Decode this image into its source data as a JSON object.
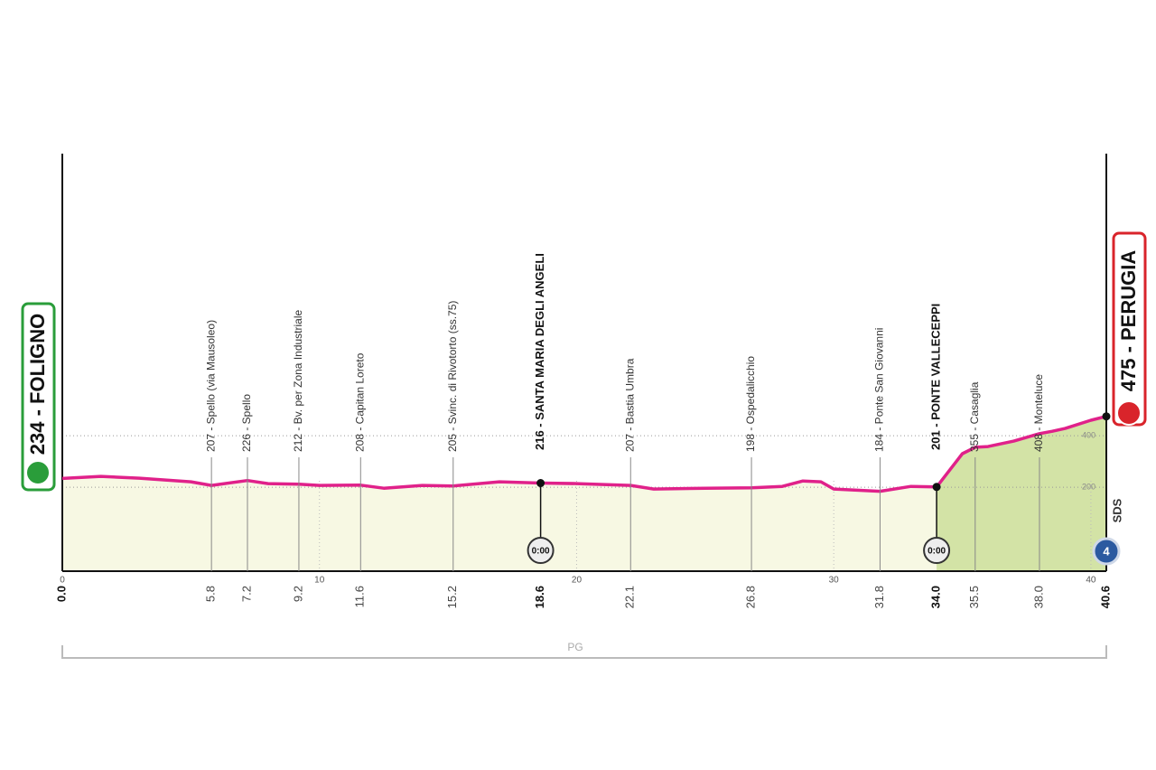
{
  "chart_data": {
    "type": "elevation",
    "profile": {
      "km": [
        0,
        1.5,
        3,
        5,
        5.8,
        7.2,
        8,
        9.2,
        10,
        11.6,
        12.5,
        14,
        15.2,
        17,
        18.6,
        20,
        22.1,
        23,
        25,
        26.8,
        28,
        28.8,
        29.5,
        30,
        31.8,
        33,
        34,
        35,
        35.5,
        36,
        37,
        38,
        38.5,
        39,
        40,
        40.6
      ],
      "elevation": [
        234,
        242,
        235,
        221,
        207,
        226,
        214,
        212,
        207,
        208,
        196,
        207,
        205,
        221,
        216,
        214,
        207,
        193,
        196,
        198,
        203,
        224,
        221,
        193,
        184,
        203,
        201,
        330,
        355,
        358,
        379,
        408,
        417,
        428,
        460,
        475
      ]
    },
    "waypoints": [
      {
        "km": {
          "value": 0,
          "label": "0.0"
        },
        "label": "234 - FOLIGNO"
      },
      {
        "km": 5.8,
        "label": "207 - Spello (via Mausoleo)"
      },
      {
        "km": 7.2,
        "label": "226 - Spello"
      },
      {
        "km": 9.2,
        "label": "212 - Bv. per Zona Industriale"
      },
      {
        "km": 11.6,
        "label": "208 - Capitan Loreto"
      },
      {
        "km": 15.2,
        "label": "205 - Svinc. di Rivotorto (ss.75)"
      },
      {
        "km": 18.6,
        "label": "216 - SANTA MARIA DEGLI ANGELI",
        "time": "0:00"
      },
      {
        "km": 22.1,
        "label": "207 - Bastia Umbra"
      },
      {
        "km": 26.8,
        "label": "198 - Ospedalicchio"
      },
      {
        "km": 31.8,
        "label": "184 - Ponte San Giovanni"
      },
      {
        "km": {
          "value": 34,
          "label": "34.0"
        },
        "label": "201 - PONTE VALLECEPPI",
        "time": "0:00"
      },
      {
        "km": 35.5,
        "label": "355 - Casaglia"
      },
      {
        "km": {
          "value": 38,
          "label": "38.0"
        },
        "label": "408 - Monteluce"
      },
      {
        "km": 40.6,
        "label": "475 - PERUGIA"
      }
    ],
    "xlim": [
      0,
      40.6
    ],
    "xticks": [
      0,
      10,
      20,
      30,
      40
    ],
    "ylim": [
      -126,
      1495
    ],
    "yticks": [
      200,
      400
    ],
    "grid": true,
    "region": "PG",
    "brand": "SDS",
    "stage_badge": "4",
    "line_color": "#e0218a",
    "fill_color": "#f7f8e3",
    "climb_color": "#d3e3a6"
  }
}
